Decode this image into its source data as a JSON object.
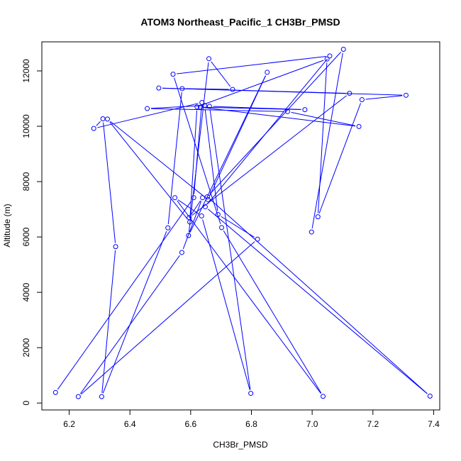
{
  "chart_data": {
    "type": "line",
    "title": "ATOM3 Northeast_Pacific_1 CH3Br_PMSD",
    "xlabel": "CH3Br_PMSD",
    "ylabel": "Altitude (m)",
    "xlim": [
      6.11,
      7.42
    ],
    "ylim": [
      -250,
      13050
    ],
    "xticks": [
      6.2,
      6.4,
      6.6,
      6.8,
      7.0,
      7.2,
      7.4
    ],
    "yticks": [
      0,
      2000,
      4000,
      6000,
      8000,
      10000,
      12000
    ],
    "grid": false,
    "series": [
      {
        "color": "#0000ff",
        "marker": "open-circle",
        "points": [
          [
            6.155,
            380
          ],
          [
            6.61,
            7420
          ],
          [
            6.637,
            10860
          ],
          [
            6.281,
            9920
          ],
          [
            6.311,
            10270
          ],
          [
            6.353,
            5650
          ],
          [
            6.307,
            230
          ],
          [
            6.525,
            6330
          ],
          [
            6.572,
            11360
          ],
          [
            6.738,
            11330
          ],
          [
            6.66,
            12440
          ],
          [
            6.593,
            6050
          ],
          [
            6.852,
            11950
          ],
          [
            6.657,
            7350
          ],
          [
            6.326,
            10260
          ],
          [
            6.597,
            6540
          ],
          [
            6.621,
            10700
          ],
          [
            7.049,
            12430
          ],
          [
            7.019,
            6730
          ],
          [
            7.164,
            10960
          ],
          [
            7.309,
            11120
          ],
          [
            6.495,
            11380
          ],
          [
            7.123,
            11190
          ],
          [
            6.595,
            6700
          ],
          [
            6.639,
            7420
          ],
          [
            6.571,
            5440
          ],
          [
            6.23,
            230
          ],
          [
            6.82,
            5920
          ],
          [
            6.69,
            6810
          ],
          [
            6.646,
            10750
          ],
          [
            6.457,
            10640
          ],
          [
            6.919,
            10530
          ],
          [
            7.154,
            9990
          ],
          [
            6.632,
            10690
          ],
          [
            6.976,
            10600
          ],
          [
            6.662,
            10720
          ],
          [
            6.798,
            350
          ],
          [
            6.636,
            6760
          ],
          [
            6.548,
            7420
          ],
          [
            7.036,
            240
          ],
          [
            6.702,
            6340
          ],
          [
            6.542,
            11880
          ],
          [
            7.058,
            12540
          ],
          [
            6.648,
            7090
          ],
          [
            7.388,
            250
          ],
          [
            6.655,
            7450
          ],
          [
            7.103,
            12780
          ],
          [
            6.998,
            6180
          ]
        ]
      }
    ]
  }
}
